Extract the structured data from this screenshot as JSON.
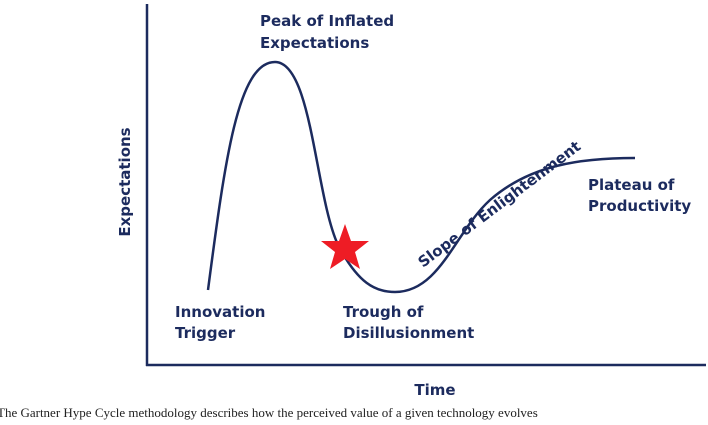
{
  "diagram": {
    "y_axis_label": "Expectations",
    "x_axis_label": "Time",
    "phases": [
      {
        "lines": [
          "Innovation",
          "Trigger"
        ]
      },
      {
        "lines": [
          "Peak of Inflated",
          "Expectations"
        ]
      },
      {
        "lines": [
          "Trough of",
          "Disillusionment"
        ]
      },
      {
        "lines": [
          "Slope of Enlightenment"
        ]
      },
      {
        "lines": [
          "Plateau of",
          "Productivity"
        ]
      }
    ]
  },
  "caption": "The Gartner Hype Cycle methodology describes how the perceived value of a given technology evolves"
}
